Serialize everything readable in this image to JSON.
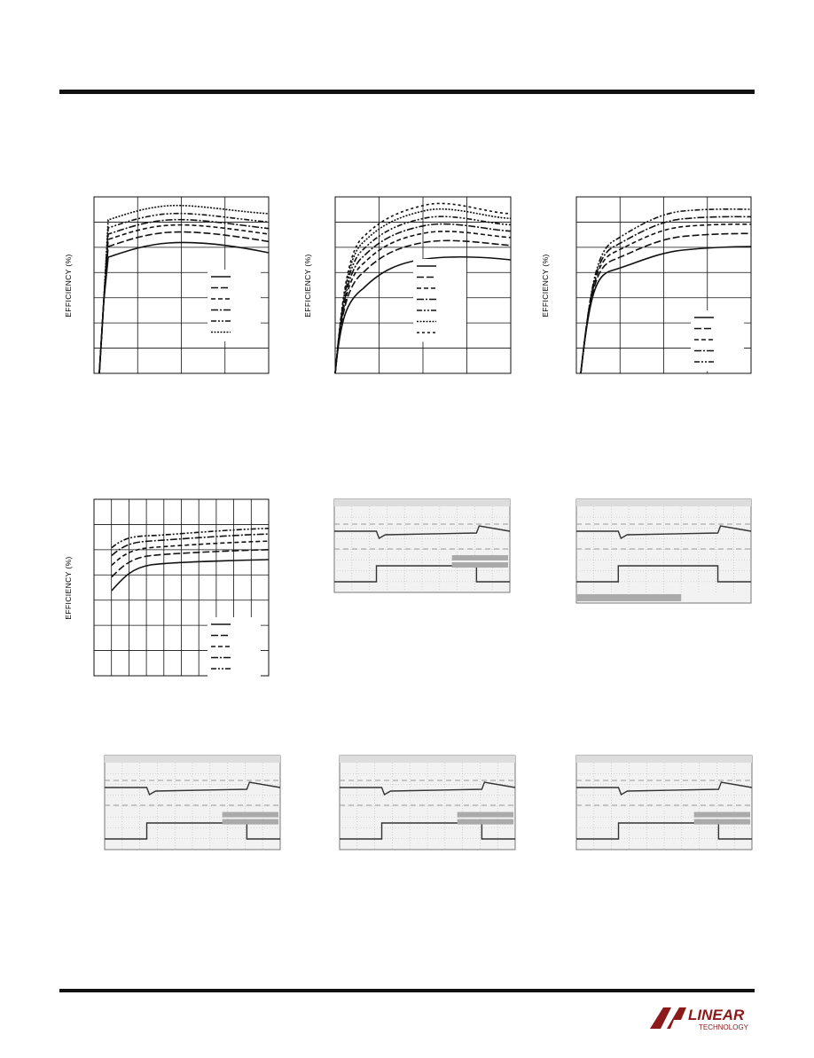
{
  "panels": [
    {
      "y_label": "EFFICIENCY (%)"
    },
    {
      "y_label": "EFFICIENCY (%)"
    },
    {
      "y_label": "EFFICIENCY (%)"
    },
    {
      "y_label": "EFFICIENCY (%)"
    }
  ],
  "logo": {
    "name": "LINEAR",
    "sub": "TECHNOLOGY"
  }
}
